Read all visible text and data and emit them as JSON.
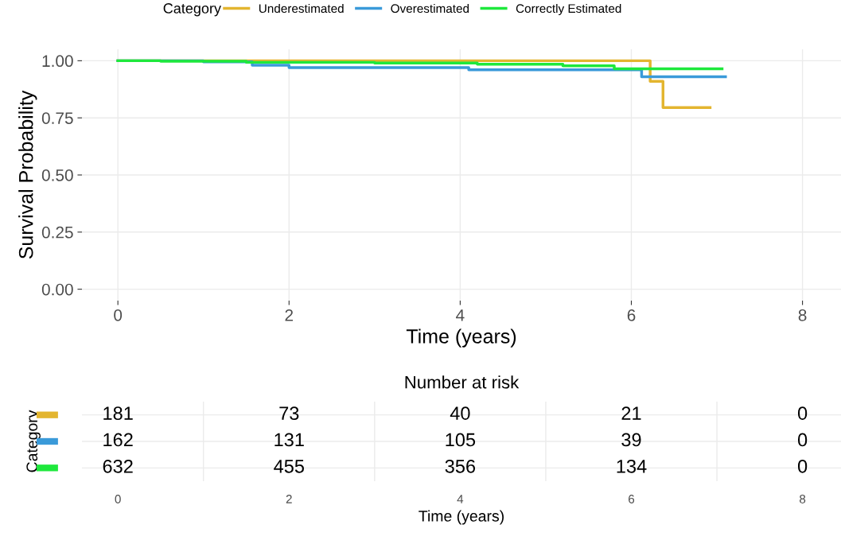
{
  "chart_data": [
    {
      "type": "step",
      "xlabel": "Time (years)",
      "ylabel": "Survival Probability",
      "legend_title": "Category",
      "legend": "top",
      "grid": true,
      "xlim": [
        -0.42,
        8.45
      ],
      "xticks": [
        0,
        2,
        4,
        6,
        8
      ],
      "ylim": [
        -0.05,
        1.05
      ],
      "yticks": [
        {
          "value": 0,
          "label": "0.00"
        },
        {
          "value": 0.25,
          "label": "0.25"
        },
        {
          "value": 0.5,
          "label": "0.50"
        },
        {
          "value": 0.75,
          "label": "0.75"
        },
        {
          "value": 1,
          "label": "1.00"
        }
      ],
      "series": [
        {
          "name": "Underestimated",
          "color": "#e3b52f",
          "x": [
            0,
            6.22,
            6.37,
            6.92
          ],
          "values": [
            1.0,
            0.91,
            0.795,
            0.795
          ]
        },
        {
          "name": "Overestimated",
          "color": "#3a9ad9",
          "x": [
            0,
            1.0,
            1.57,
            2.0,
            4.1,
            6.12,
            7.1
          ],
          "values": [
            1.0,
            0.995,
            0.98,
            0.97,
            0.96,
            0.93,
            0.93
          ]
        },
        {
          "name": "Correctly Estimated",
          "color": "#1ee83c",
          "x": [
            0,
            0.5,
            1.5,
            3.0,
            4.2,
            5.2,
            5.8,
            7.06
          ],
          "values": [
            1.0,
            0.998,
            0.993,
            0.99,
            0.985,
            0.978,
            0.965,
            0.965
          ]
        }
      ]
    },
    {
      "type": "heatmap",
      "title": "Number at risk",
      "xlabel": "Time (years)",
      "ylabel": "Category",
      "categories": [
        "0",
        "2",
        "4",
        "6",
        "8"
      ],
      "y_categories": [
        null,
        null,
        null
      ],
      "colors": [
        "#e3b52f",
        "#3a9ad9",
        "#1ee83c"
      ],
      "grid": true,
      "data_labels": true,
      "cells": [
        [
          181,
          73,
          40,
          21,
          0
        ],
        [
          162,
          131,
          105,
          39,
          0
        ],
        [
          632,
          455,
          356,
          134,
          0
        ]
      ]
    }
  ]
}
